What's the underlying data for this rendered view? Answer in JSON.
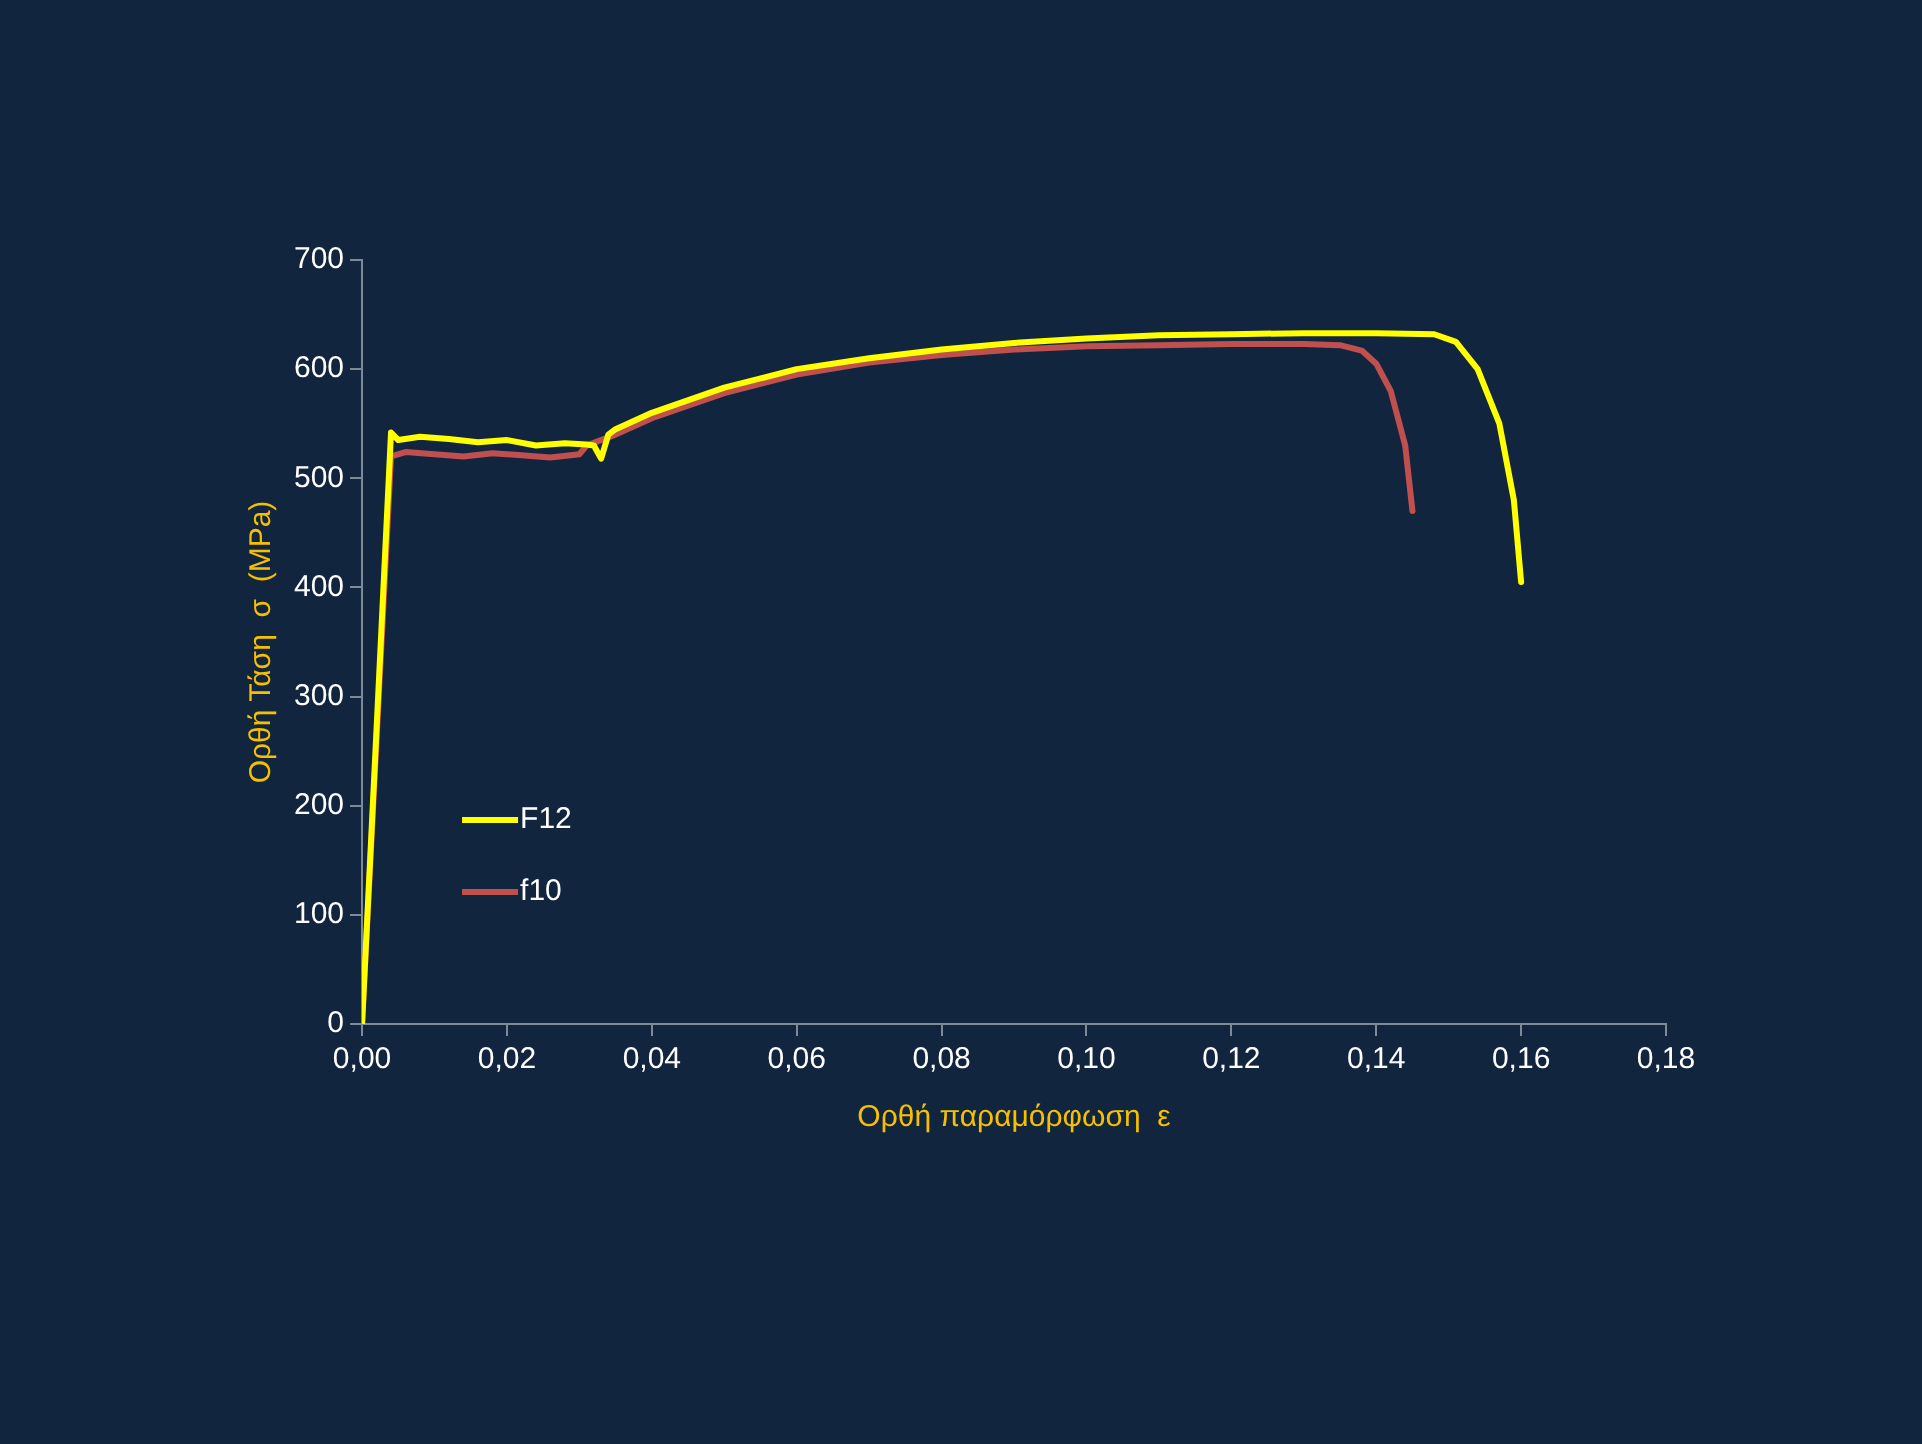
{
  "chart_data": {
    "type": "line",
    "xlabel": "Ορθή παραμόρφωση  ε",
    "ylabel": "Ορθή Τάση  σ  (MPa)",
    "xlim": [
      0,
      0.18
    ],
    "xticks": [
      {
        "value": 0,
        "label": "0,00"
      },
      {
        "value": 0.02,
        "label": "0,02"
      },
      {
        "value": 0.04,
        "label": "0,04"
      },
      {
        "value": 0.06,
        "label": "0,06"
      },
      {
        "value": 0.08,
        "label": "0,08"
      },
      {
        "value": 0.1,
        "label": "0,10"
      },
      {
        "value": 0.12,
        "label": "0,12"
      },
      {
        "value": 0.14,
        "label": "0,14"
      },
      {
        "value": 0.16,
        "label": "0,16"
      },
      {
        "value": 0.18,
        "label": "0,18"
      }
    ],
    "ylim": [
      0,
      700
    ],
    "yticks": [
      0,
      100,
      200,
      300,
      400,
      500,
      600,
      700
    ],
    "grid": false,
    "legend": "bottom left",
    "marker": "none",
    "line_style": "solid",
    "series": [
      {
        "name": "F12",
        "color": "#ffff00",
        "x": [
          0,
          0.002,
          0.004,
          0.005,
          0.008,
          0.012,
          0.016,
          0.02,
          0.024,
          0.028,
          0.031,
          0.032,
          0.033,
          0.034,
          0.035,
          0.04,
          0.05,
          0.06,
          0.07,
          0.08,
          0.09,
          0.1,
          0.11,
          0.12,
          0.13,
          0.14,
          0.148,
          0.151,
          0.154,
          0.157,
          0.159,
          0.16
        ],
        "values": [
          0,
          270,
          542,
          535,
          538,
          536,
          533,
          535,
          530,
          532,
          531,
          530,
          518,
          540,
          545,
          560,
          583,
          600,
          610,
          618,
          624,
          628,
          631,
          632,
          633,
          633,
          632,
          625,
          600,
          550,
          480,
          405
        ]
      },
      {
        "name": "f10",
        "color": "#c0504d",
        "x": [
          0,
          0.002,
          0.004,
          0.006,
          0.01,
          0.014,
          0.018,
          0.022,
          0.026,
          0.03,
          0.031,
          0.035,
          0.04,
          0.05,
          0.06,
          0.07,
          0.08,
          0.09,
          0.1,
          0.11,
          0.12,
          0.13,
          0.135,
          0.138,
          0.14,
          0.142,
          0.144,
          0.145
        ],
        "values": [
          0,
          260,
          520,
          524,
          522,
          520,
          523,
          521,
          519,
          522,
          530,
          540,
          555,
          578,
          595,
          606,
          613,
          618,
          621,
          622,
          623,
          623,
          622,
          617,
          605,
          580,
          530,
          470
        ]
      }
    ]
  }
}
